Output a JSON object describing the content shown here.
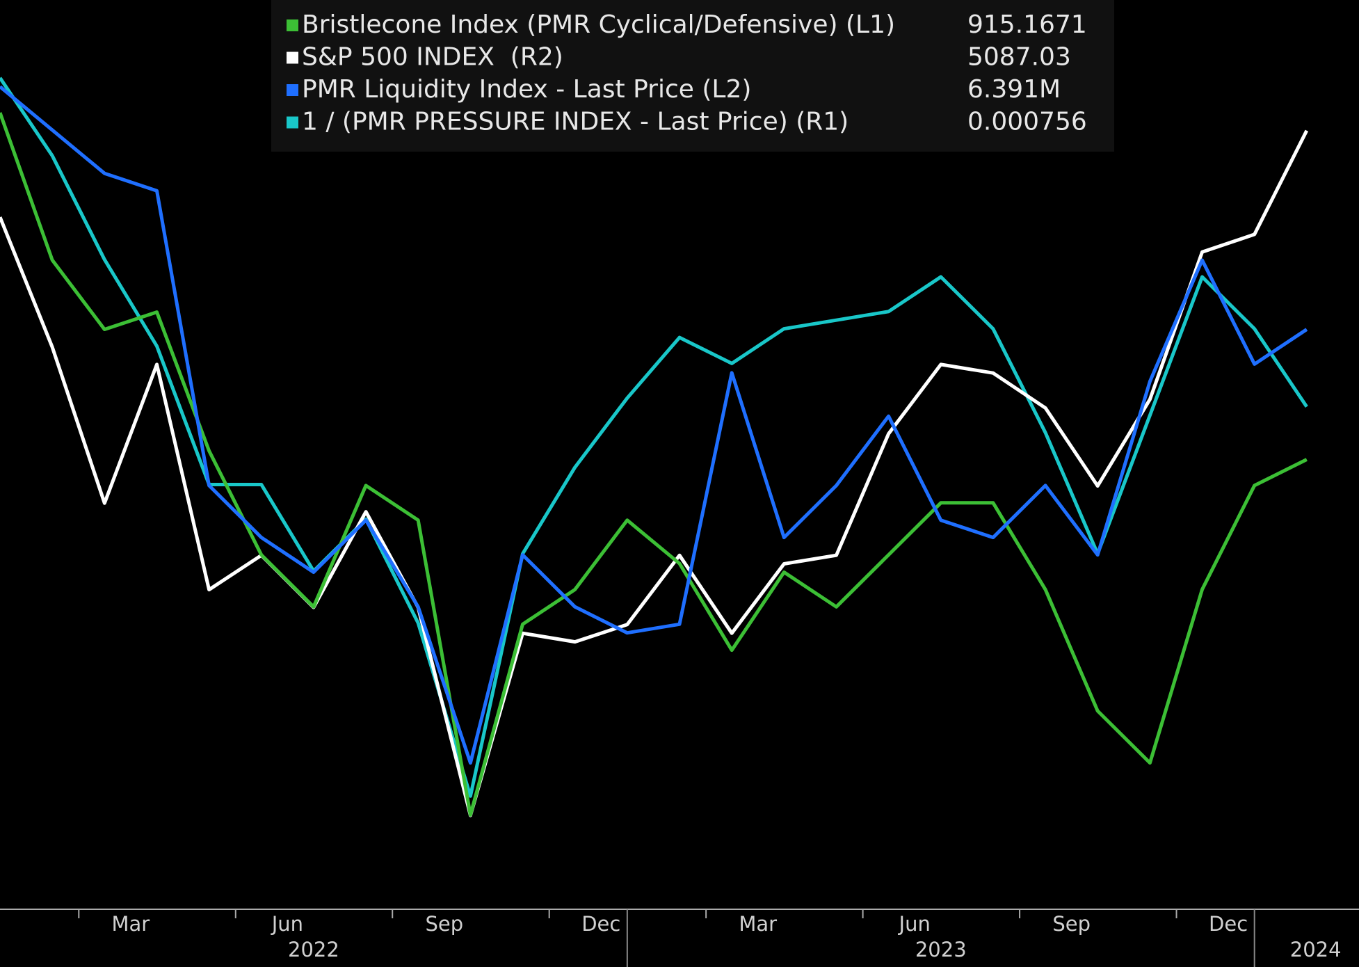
{
  "chart_data": {
    "type": "line",
    "x": [
      "2022-01",
      "2022-02",
      "2022-03",
      "2022-04",
      "2022-05",
      "2022-06",
      "2022-07",
      "2022-08",
      "2022-09",
      "2022-10",
      "2022-11",
      "2022-12",
      "2023-01",
      "2023-02",
      "2023-03",
      "2023-04",
      "2023-05",
      "2023-06",
      "2023-07",
      "2023-08",
      "2023-09",
      "2023-10",
      "2023-11",
      "2023-12",
      "2024-01",
      "2024-02"
    ],
    "xlim": [
      "2022-01",
      "2024-03"
    ],
    "xticks": [
      {
        "value": "2022-03",
        "label": "Mar"
      },
      {
        "value": "2022-06",
        "label": "Jun"
      },
      {
        "value": "2022-09",
        "label": "Sep"
      },
      {
        "value": "2022-12",
        "label": "Dec"
      },
      {
        "value": "2023-03",
        "label": "Mar"
      },
      {
        "value": "2023-06",
        "label": "Jun"
      },
      {
        "value": "2023-09",
        "label": "Sep"
      },
      {
        "value": "2023-12",
        "label": "Dec"
      }
    ],
    "years": [
      "2022",
      "2023",
      "2024"
    ],
    "series": [
      {
        "name": "Bristlecone Index (PMR Cyclical/Defensive) (L1)",
        "axis": "L1",
        "color": "#3cbf35",
        "last_value": 915.1671,
        "ylim": [
          636,
          1160
        ],
        "values": [
          1095,
          1010,
          970,
          980,
          900,
          840,
          810,
          880,
          860,
          690,
          800,
          820,
          860,
          835,
          785,
          830,
          810,
          840,
          870,
          870,
          820,
          750,
          720,
          820,
          880,
          895
        ]
      },
      {
        "name": "S&P 500 INDEX  (R2)",
        "axis": "R2",
        "color": "#ffffff",
        "last_value": 5087.03,
        "ylim": [
          3430,
          5225
        ],
        "values": [
          4796,
          4539,
          4231,
          4505,
          4060,
          4128,
          4025,
          4214,
          4025,
          3614,
          3974,
          3957,
          3991,
          4128,
          3974,
          4111,
          4128,
          4368,
          4505,
          4488,
          4419,
          4265,
          4436,
          4727,
          4762,
          4967
        ]
      },
      {
        "name": "PMR Liquidity Index - Last Price (L2)",
        "axis": "L2",
        "color": "#1f6fff",
        "last_value": 6.391,
        "last_value_label": "6.391M",
        "ylim": [
          5.055,
          7.151
        ],
        "values": [
          6.951,
          6.851,
          6.751,
          6.711,
          6.031,
          5.911,
          5.831,
          5.951,
          5.751,
          5.391,
          5.871,
          5.751,
          5.691,
          5.711,
          6.291,
          5.911,
          6.031,
          6.191,
          5.951,
          5.911,
          6.031,
          5.871,
          6.271,
          6.551,
          6.311,
          6.391
        ]
      },
      {
        "name": "1 / (PMR PRESSURE INDEX - Last Price) (R1)",
        "axis": "R1",
        "color": "#19c7c9",
        "last_value": 0.000756,
        "ylim": [
          0.000637,
          0.000847
        ],
        "values": [
          0.000829,
          0.000811,
          0.000787,
          0.000767,
          0.000735,
          0.000735,
          0.000715,
          0.000727,
          0.000703,
          0.000663,
          0.000719,
          0.000739,
          0.000755,
          0.000769,
          0.000763,
          0.000771,
          0.000773,
          0.000775,
          0.000783,
          0.000771,
          0.000747,
          0.000719,
          0.000751,
          0.000783,
          0.000771,
          0.000753
        ]
      }
    ]
  }
}
